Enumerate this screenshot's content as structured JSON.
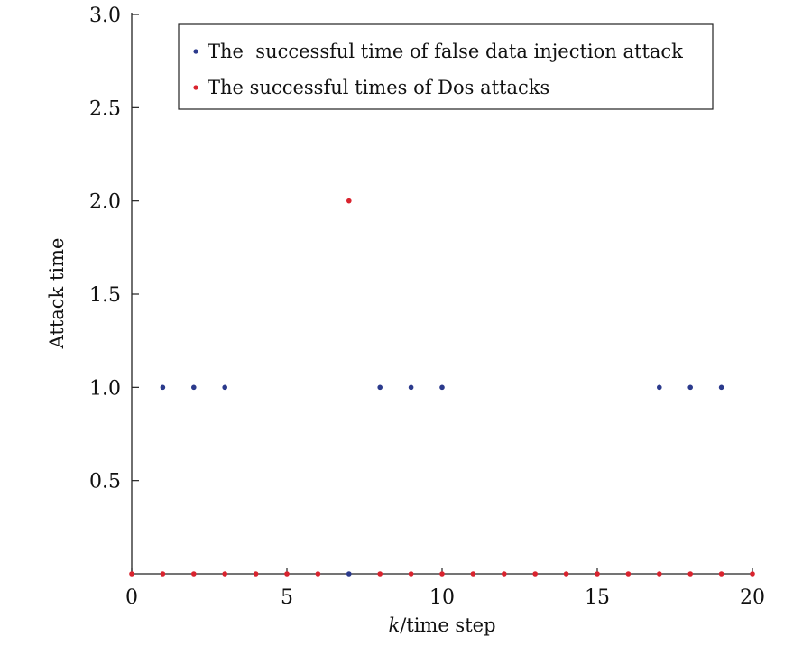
{
  "chart_data": {
    "type": "scatter",
    "title": "",
    "xlabel": "k/time step",
    "xlabel_italic_part": "k",
    "xlabel_rest": "/time step",
    "ylabel": "Attack time",
    "xlim": [
      0,
      20
    ],
    "ylim": [
      0,
      3.0
    ],
    "x_ticks": [
      0,
      5,
      10,
      15,
      20
    ],
    "x_tick_labels": [
      "0",
      "5",
      "10",
      "15",
      "20"
    ],
    "y_ticks": [
      0.5,
      1.0,
      1.5,
      2.0,
      2.5,
      3.0
    ],
    "y_tick_labels": [
      "0.5",
      "1.0",
      "1.5",
      "2.0",
      "2.5",
      "3.0"
    ],
    "grid": false,
    "legend_position": "top-right",
    "series": [
      {
        "name": "The  successful time of false data injection attack",
        "color": "#2b3a8c",
        "x": [
          1,
          2,
          3,
          7,
          8,
          9,
          10,
          17,
          18,
          19
        ],
        "y": [
          1,
          1,
          1,
          0,
          1,
          1,
          1,
          1,
          1,
          1
        ]
      },
      {
        "name": "The successful times of Dos attacks",
        "color": "#d9232e",
        "x": [
          0,
          1,
          2,
          3,
          4,
          5,
          6,
          7,
          8,
          9,
          10,
          11,
          12,
          13,
          14,
          15,
          16,
          17,
          18,
          19,
          20
        ],
        "y": [
          0,
          0,
          0,
          0,
          0,
          0,
          0,
          2,
          0,
          0,
          0,
          0,
          0,
          0,
          0,
          0,
          0,
          0,
          0,
          0,
          0
        ]
      }
    ]
  }
}
